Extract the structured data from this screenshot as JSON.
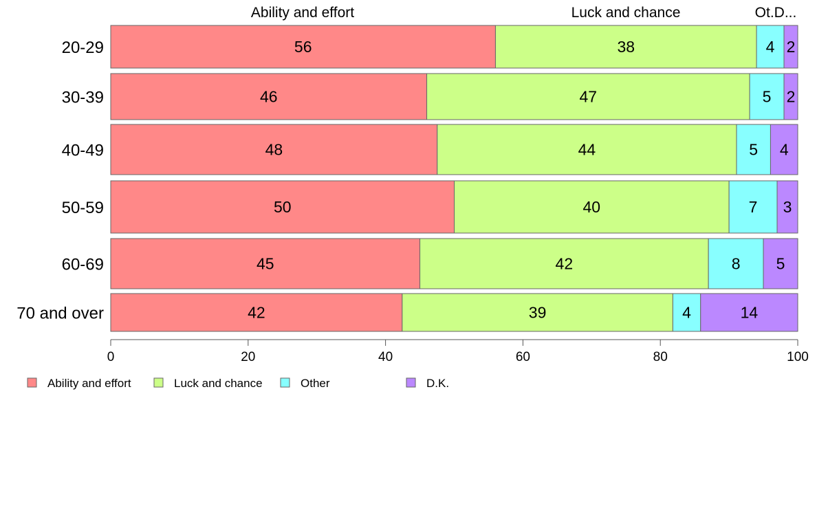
{
  "chart_data": {
    "type": "bar",
    "orientation": "horizontal",
    "stacked": true,
    "categories": [
      "20-29",
      "30-39",
      "40-49",
      "50-59",
      "60-69",
      "70 and over"
    ],
    "series": [
      {
        "name": "Ability and effort",
        "color": "#FF8888",
        "values": [
          56,
          46,
          48,
          50,
          45,
          42
        ]
      },
      {
        "name": "Luck and chance",
        "color": "#CCFF88",
        "values": [
          38,
          47,
          44,
          40,
          42,
          39
        ]
      },
      {
        "name": "Other",
        "color": "#88FFFF",
        "values": [
          4,
          5,
          5,
          7,
          8,
          4
        ]
      },
      {
        "name": "D.K.",
        "color": "#BB88FF",
        "values": [
          2,
          2,
          4,
          3,
          5,
          14
        ]
      }
    ],
    "top_labels": [
      "Ability and effort",
      "Luck and chance",
      "Ot.D..."
    ],
    "xticks": [
      "0",
      "20",
      "40",
      "60",
      "80",
      "100"
    ],
    "xlim": [
      0,
      100
    ],
    "legend_position": "bottom-left"
  }
}
